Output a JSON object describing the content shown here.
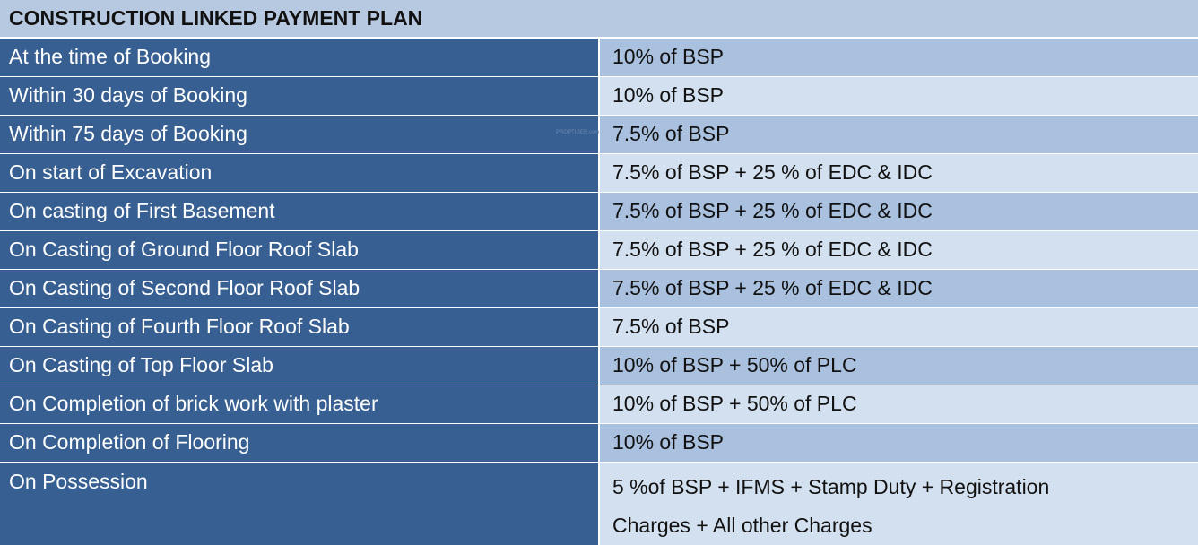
{
  "title": "CONSTRUCTION LINKED PAYMENT PLAN",
  "watermark": "PROPTIGER.com",
  "rows": [
    {
      "stage": "At the time of Booking",
      "payment": "10% of BSP"
    },
    {
      "stage": "Within 30 days of Booking",
      "payment": "10% of BSP"
    },
    {
      "stage": "Within 75 days of Booking",
      "payment": "7.5% of BSP"
    },
    {
      "stage": "On start of Excavation",
      "payment": "7.5% of BSP + 25 % of EDC & IDC"
    },
    {
      "stage": "On casting of First Basement",
      "payment": "7.5% of BSP + 25 % of EDC & IDC"
    },
    {
      "stage": "On Casting of Ground Floor Roof Slab",
      "payment": "7.5% of BSP + 25 % of EDC & IDC"
    },
    {
      "stage": "On Casting of Second Floor Roof Slab",
      "payment": "7.5% of BSP + 25 % of EDC & IDC"
    },
    {
      "stage": "On Casting of Fourth Floor Roof Slab",
      "payment": "7.5% of BSP"
    },
    {
      "stage": "On Casting of Top Floor Slab",
      "payment": "10% of BSP + 50% of PLC"
    },
    {
      "stage": "On Completion of brick work with plaster",
      "payment": "10% of BSP + 50% of PLC"
    },
    {
      "stage": "On Completion of Flooring",
      "payment": "10% of BSP"
    },
    {
      "stage": "On Possession",
      "payment_line1": "5 %of BSP + IFMS + Stamp Duty + Registration",
      "payment_line2": "Charges + All other Charges"
    }
  ]
}
